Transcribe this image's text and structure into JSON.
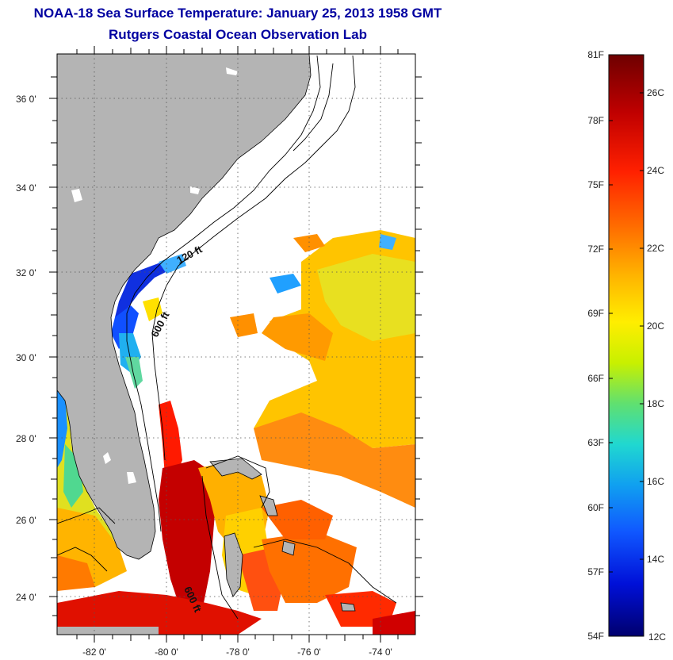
{
  "title": "NOAA-18 Sea Surface Temperature:  January 25, 2013 1958 GMT",
  "subtitle": "Rutgers Coastal Ocean Observation Lab",
  "map": {
    "lat_labels": [
      "36 0'",
      "34 0'",
      "32 0'",
      "30 0'",
      "28 0'",
      "26 0'",
      "24 0'"
    ],
    "lon_labels": [
      "-82 0'",
      "-80 0'",
      "-78 0'",
      "-76 0'",
      "-74 0'"
    ],
    "contour_labels": [
      "120 ft",
      "600 ft",
      "600 ft"
    ],
    "colors": {
      "land": "#b4b4b4",
      "frame": "#000000",
      "grid": "#444444"
    }
  },
  "colorbar": {
    "fahrenheit_labels": [
      "81F",
      "78F",
      "75F",
      "72F",
      "69F",
      "66F",
      "63F",
      "60F",
      "57F",
      "54F"
    ],
    "celsius_labels": [
      "26C",
      "24C",
      "22C",
      "20C",
      "18C",
      "16C",
      "14C",
      "12C"
    ],
    "gradient": [
      "#7a0000",
      "#c00000",
      "#ff1a00",
      "#ff6a00",
      "#ffb000",
      "#ffe800",
      "#c8f000",
      "#6ee06e",
      "#22d6c8",
      "#10a8f0",
      "#1060ff",
      "#0010e0",
      "#000080"
    ]
  }
}
